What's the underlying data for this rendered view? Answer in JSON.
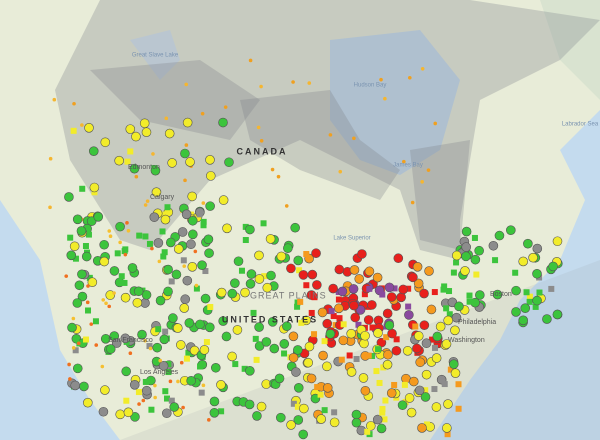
{
  "map": {
    "labels": [
      "Great Slave Lake",
      "Hudson Bay",
      "CANADA",
      "James Bay",
      "Edmonton",
      "Calgary",
      "Lake Superior",
      "GREAT PLAINS",
      "UNITED STATES",
      "Boston",
      "Philadelphia",
      "Washington",
      "San Francisco",
      "Los Angeles",
      "Labrador Sea"
    ]
  }
}
